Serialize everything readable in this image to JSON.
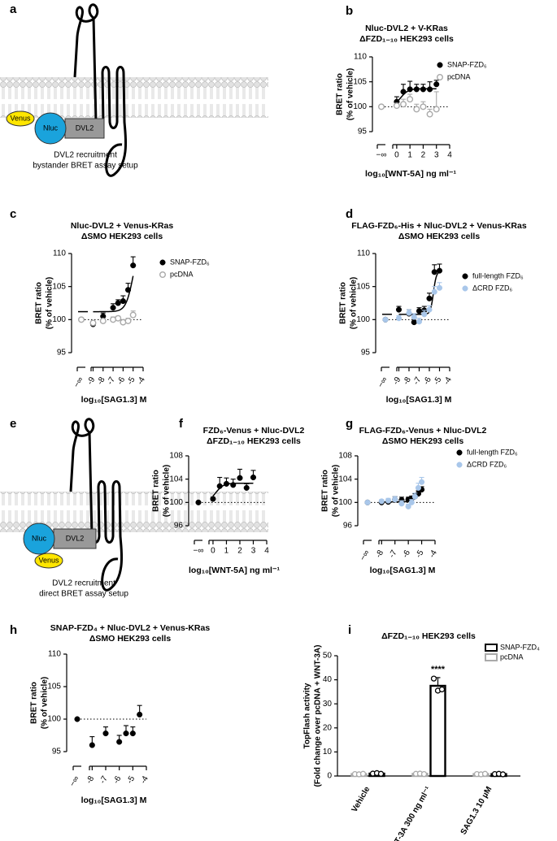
{
  "diagrams": [
    {
      "panel": "a",
      "labels": {
        "venus": "Venus",
        "nluc": "Nluc",
        "dvl2": "DVL2"
      },
      "caption": [
        "DVL2 recruitment",
        "bystander BRET assay setup"
      ]
    },
    {
      "panel": "e",
      "labels": {
        "venus": "Venus",
        "nluc": "Nluc",
        "dvl2": "DVL2"
      },
      "caption": [
        "DVL2 recruitment",
        "direct BRET assay setup"
      ]
    }
  ],
  "chart_data": [
    {
      "type": "scatter",
      "panel": "b",
      "title": "Nluc-DVL2 + V-KRas",
      "subtitle": "ΔFZD₁₋₁₀ HEK293 cells",
      "ylabel": [
        "BRET ratio",
        "(% of vehicle)"
      ],
      "xlabel": "log₁₀[WNT-5A] ng ml⁻¹",
      "vehicle_label": "−∞",
      "x": [
        0,
        0.5,
        1,
        1.5,
        2,
        2.5,
        3
      ],
      "xlim": [
        -0.3,
        4
      ],
      "xticks": [
        0,
        1,
        2,
        3,
        4
      ],
      "ylim": [
        95,
        110
      ],
      "yticks": [
        95,
        100,
        105,
        110
      ],
      "reference_line": 100,
      "fit": {
        "bottom": 100,
        "top": 103.6,
        "log_ec50": 0.3,
        "hill": 1.5
      },
      "series": [
        {
          "name": "SNAP-FZD₆",
          "color": "#000000",
          "marker": "filled",
          "vehicle": 100,
          "values": [
            101,
            103,
            103.5,
            103.5,
            103.5,
            103.5,
            104.5
          ],
          "errors": [
            1,
            1.5,
            1.6,
            1,
            1,
            1.5,
            0.8
          ]
        },
        {
          "name": "pcDNA",
          "color": "#aaaaaa",
          "marker": "open",
          "vehicle": 100,
          "values": [
            100.2,
            100.5,
            101.5,
            99.5,
            100,
            98.5,
            99.5
          ],
          "errors": [
            0.5,
            1,
            1,
            1,
            1,
            1,
            3.5
          ]
        }
      ]
    },
    {
      "type": "scatter",
      "panel": "c",
      "title": "Nluc-DVL2 + Venus-KRas",
      "subtitle": "ΔSMO HEK293 cells",
      "ylabel": [
        "BRET ratio",
        "(% of vehicle)"
      ],
      "xlabel": "log₁₀[SAG1.3] M",
      "vehicle_label": "−∞",
      "x": [
        -9,
        -8,
        -7,
        -6.5,
        -6,
        -5.5,
        -5
      ],
      "xlim": [
        -9.2,
        -4
      ],
      "xticks": [
        -9,
        -8,
        -7,
        -6,
        -5,
        -4
      ],
      "ylim": [
        95,
        110
      ],
      "yticks": [
        95,
        100,
        105,
        110
      ],
      "reference_line": 100,
      "fit": {
        "bottom": 101.2,
        "top": 112,
        "log_ec50": -5,
        "hill": 1.2
      },
      "series": [
        {
          "name": "SNAP-FZD₆",
          "color": "#000000",
          "marker": "filled",
          "vehicle": 100,
          "values": [
            99.3,
            100.5,
            101.8,
            102.5,
            102.8,
            104.5,
            108.2
          ],
          "errors": [
            0.3,
            0.5,
            0.6,
            0.5,
            0.8,
            1,
            1.3
          ]
        },
        {
          "name": "pcDNA",
          "color": "#aaaaaa",
          "marker": "open",
          "vehicle": 100,
          "values": [
            99.5,
            99.8,
            100,
            100.2,
            99.6,
            99.8,
            100.7
          ],
          "errors": [
            0.3,
            0.3,
            0.4,
            0.3,
            0.3,
            0.4,
            0.6
          ]
        }
      ]
    },
    {
      "type": "scatter",
      "panel": "d",
      "title": "FLAG-FZD₆-His + Nluc-DVL2 + Venus-KRas",
      "subtitle": "ΔSMO HEK293 cells",
      "ylabel": [
        "BRET ratio",
        "(% of vehicle)"
      ],
      "xlabel": "log₁₀[SAG1.3] M",
      "vehicle_label": "−∞",
      "x": [
        -9,
        -8,
        -7.5,
        -7,
        -6.5,
        -6,
        -5.5,
        -5
      ],
      "xlim": [
        -9.2,
        -4
      ],
      "xticks": [
        -9,
        -8,
        -7,
        -6,
        -5,
        -4
      ],
      "ylim": [
        95,
        110
      ],
      "yticks": [
        95,
        100,
        105,
        110
      ],
      "reference_line": 100,
      "fit": {
        "bottom": 100.8,
        "top": 107.3,
        "log_ec50": -5.6,
        "hill": 3
      },
      "series": [
        {
          "name": "full-length FZD₆",
          "color": "#000000",
          "marker": "filled",
          "vehicle": 100,
          "values": [
            101.5,
            100.9,
            99.6,
            101.3,
            101.4,
            103.2,
            107.2,
            107.4
          ],
          "errors": [
            0.5,
            0.6,
            0.6,
            0.5,
            0.6,
            0.8,
            1.1,
            1
          ]
        },
        {
          "name": "ΔCRD FZD₆",
          "color": "#a9c7ea",
          "marker": "filled",
          "vehicle": 100,
          "values": [
            100.2,
            101,
            100.4,
            99.7,
            100.8,
            101.5,
            104.2,
            104.8
          ],
          "errors": [
            0.4,
            0.5,
            0.5,
            0.5,
            0.6,
            0.6,
            0.8,
            0.8
          ]
        }
      ]
    },
    {
      "type": "scatter",
      "panel": "f",
      "title": "FZD₆-Venus + Nluc-DVL2",
      "subtitle": "ΔFZD₁₋₁₀ HEK293 cells",
      "ylabel": [
        "BRET ratio",
        "(% of vehicle)"
      ],
      "xlabel": "log₁₀[WNT-5A] ng ml⁻¹",
      "vehicle_label": "−∞",
      "x": [
        0,
        0.5,
        1,
        1.5,
        2,
        2.5,
        3
      ],
      "xlim": [
        -0.3,
        4
      ],
      "xticks": [
        0,
        1,
        2,
        3,
        4
      ],
      "ylim": [
        96,
        108
      ],
      "yticks": [
        96,
        100,
        104,
        108
      ],
      "reference_line": 100,
      "fit": {
        "bottom": 100,
        "top": 103.3,
        "log_ec50": 0.2,
        "hill": 1.5
      },
      "series": [
        {
          "color": "#000000",
          "marker": "filled",
          "vehicle": 100,
          "values": [
            100.6,
            102.8,
            103.2,
            103,
            104.2,
            102.5,
            104.3
          ],
          "errors": [
            0.3,
            1.5,
            1,
            1,
            1.5,
            0.7,
            1.2
          ]
        }
      ]
    },
    {
      "type": "scatter",
      "panel": "g",
      "title": "FLAG-FZD₆-Venus + Nluc-DVL2",
      "subtitle": "ΔSMO HEK293 cells",
      "ylabel": [
        "BRET ratio",
        "(% of vehicle)"
      ],
      "xlabel": "log₁₀[SAG1.3] M",
      "vehicle_label": "−∞",
      "x": [
        -8,
        -7.5,
        -7,
        -6.5,
        -6,
        -5.75,
        -5.5,
        -5.25,
        -5
      ],
      "xlim": [
        -8.2,
        -4
      ],
      "xticks": [
        -8,
        -7,
        -6,
        -5,
        -4
      ],
      "ylim": [
        96,
        108
      ],
      "yticks": [
        96,
        100,
        104,
        108
      ],
      "reference_line": 100,
      "fit": {
        "bottom": 100.1,
        "top": 103,
        "log_ec50": -5.2,
        "hill": 2
      },
      "series": [
        {
          "name": "full-length FZD₆",
          "color": "#000000",
          "marker": "filled",
          "vehicle": 100,
          "values": [
            100,
            100.1,
            100.5,
            100.4,
            100.5,
            100.7,
            101,
            101.5,
            102.2
          ],
          "errors": [
            0.3,
            0.4,
            0.5,
            0.5,
            0.4,
            0.4,
            0.5,
            0.5,
            0.5
          ]
        },
        {
          "name": "ΔCRD FZD₆",
          "color": "#a9c7ea",
          "marker": "filled",
          "vehicle": 100,
          "values": [
            100.2,
            100.3,
            100.5,
            99.8,
            99.3,
            100,
            101,
            102.5,
            103.5
          ],
          "errors": [
            0.3,
            0.4,
            0.5,
            0.5,
            0.4,
            0.5,
            0.6,
            0.8,
            0.8
          ]
        }
      ]
    },
    {
      "type": "scatter",
      "panel": "h",
      "title": "SNAP-FZD₄ + Nluc-DVL2 + Venus-KRas",
      "subtitle": "ΔSMO HEK293 cells",
      "ylabel": [
        "BRET ratio",
        "(% of vehicle)"
      ],
      "xlabel": "log₁₀[SAG1.3] M",
      "vehicle_label": "−∞",
      "x": [
        -8,
        -7,
        -6,
        -5.5,
        -5,
        -4.5
      ],
      "xlim": [
        -8.2,
        -4
      ],
      "xticks": [
        -8,
        -7,
        -6,
        -5,
        -4
      ],
      "ylim": [
        95,
        110
      ],
      "yticks": [
        95,
        100,
        105,
        110
      ],
      "reference_line": 100,
      "series": [
        {
          "color": "#000000",
          "marker": "filled",
          "vehicle": 100,
          "values": [
            96,
            97.8,
            96.5,
            97.8,
            97.8,
            100.7
          ],
          "errors": [
            1.3,
            1,
            1,
            1.2,
            1,
            1.4
          ]
        }
      ]
    },
    {
      "type": "bar",
      "panel": "i",
      "title": "ΔFZD₁₋₁₀ HEK293 cells",
      "ylabel": [
        "TopFlash activity",
        "(Fold change over pcDNA + WNT-3A)"
      ],
      "categories": [
        "Vehicle",
        "WNT-3A 300 ng ml⁻¹",
        "SAG1.3 10 µM"
      ],
      "ylim": [
        0,
        50
      ],
      "yticks": [
        0,
        10,
        20,
        30,
        40,
        50
      ],
      "annotation": "****",
      "series": [
        {
          "name": "SNAP-FZD₄",
          "color": "#000000",
          "values": [
            1,
            37.5,
            0.8
          ],
          "errors": [
            0.3,
            3.4,
            0.2
          ],
          "points": [
            [
              1,
              1.2,
              0.9
            ],
            [
              40.5,
              35.5,
              36
            ],
            [
              0.8,
              0.9,
              0.7
            ]
          ]
        },
        {
          "name": "pcDNA",
          "color": "#aaaaaa",
          "values": [
            0.8,
            0.9,
            0.8
          ],
          "errors": [
            0.1,
            0.1,
            0.1
          ],
          "points": [
            [
              0.8,
              0.7,
              0.9
            ],
            [
              0.9,
              1,
              0.8
            ],
            [
              0.8,
              0.7,
              0.9
            ]
          ]
        }
      ]
    }
  ]
}
